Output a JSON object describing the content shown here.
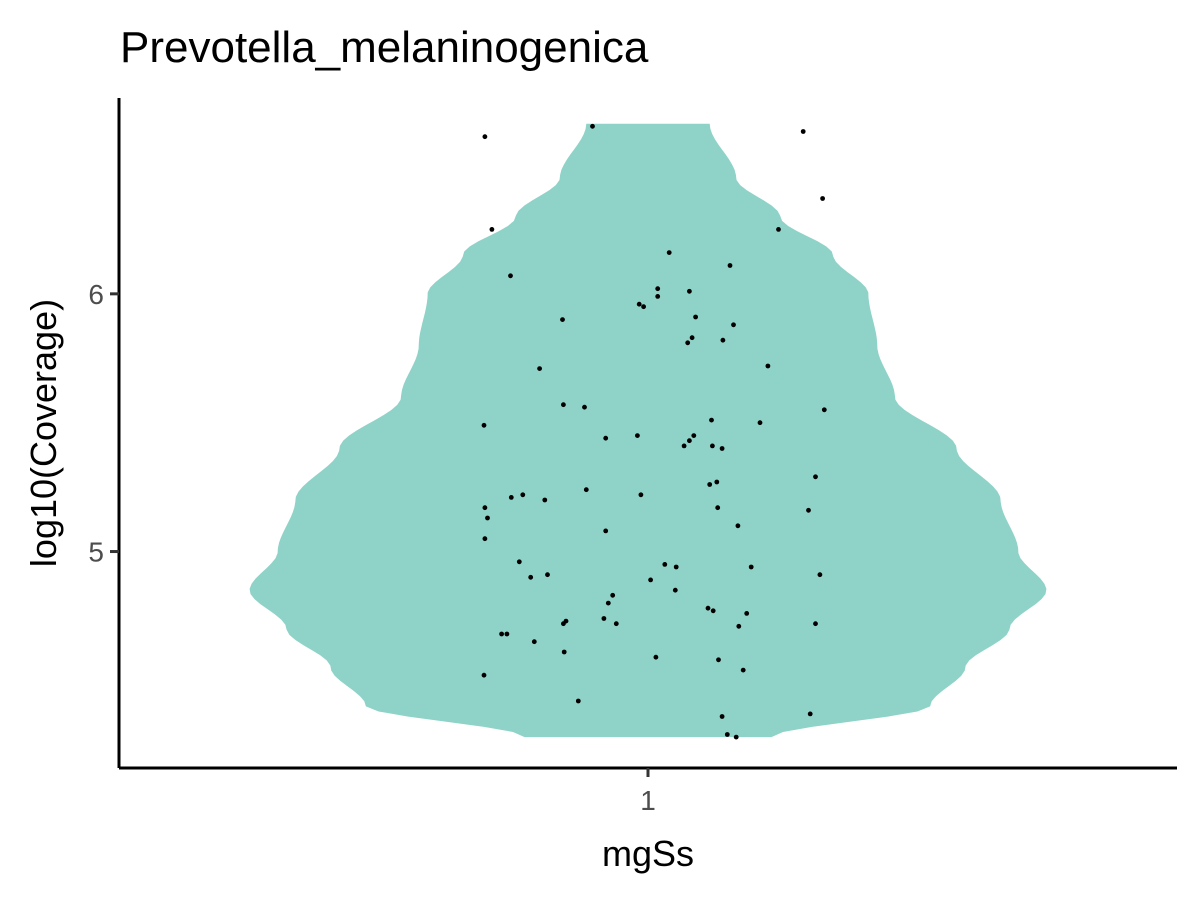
{
  "chart_data": {
    "type": "violin",
    "title": "Prevotella_melaninogenica",
    "xlabel": "mgSs",
    "ylabel": "log10(Coverage)",
    "categories": [
      "1"
    ],
    "yticks": [
      5,
      6
    ],
    "ylim": [
      4.16,
      6.76
    ],
    "xlim": [
      0.4,
      1.6
    ],
    "grid": false,
    "legend": "none",
    "colors": {
      "violin_fill": "#8fd3c8",
      "points": "#000000",
      "axis": "#000000"
    },
    "violin": {
      "ymin": 4.28,
      "ymax": 6.66,
      "profile": [
        [
          4.28,
          0.14
        ],
        [
          4.4,
          0.32
        ],
        [
          4.55,
          0.36
        ],
        [
          4.7,
          0.41
        ],
        [
          4.85,
          0.452
        ],
        [
          5.0,
          0.42
        ],
        [
          5.2,
          0.4
        ],
        [
          5.4,
          0.35
        ],
        [
          5.6,
          0.28
        ],
        [
          5.8,
          0.26
        ],
        [
          6.0,
          0.25
        ],
        [
          6.15,
          0.21
        ],
        [
          6.3,
          0.15
        ],
        [
          6.45,
          0.1
        ],
        [
          6.66,
          0.07
        ]
      ]
    },
    "points": [
      {
        "x": 0.815,
        "y": 6.61
      },
      {
        "x": 0.937,
        "y": 6.65
      },
      {
        "x": 1.176,
        "y": 6.63
      },
      {
        "x": 1.198,
        "y": 6.37
      },
      {
        "x": 0.823,
        "y": 6.25
      },
      {
        "x": 1.148,
        "y": 6.25
      },
      {
        "x": 1.024,
        "y": 6.16
      },
      {
        "x": 1.093,
        "y": 6.11
      },
      {
        "x": 0.844,
        "y": 6.07
      },
      {
        "x": 1.011,
        "y": 6.02
      },
      {
        "x": 1.047,
        "y": 6.01
      },
      {
        "x": 1.011,
        "y": 5.99
      },
      {
        "x": 0.99,
        "y": 5.96
      },
      {
        "x": 0.995,
        "y": 5.95
      },
      {
        "x": 1.054,
        "y": 5.91
      },
      {
        "x": 0.903,
        "y": 5.9
      },
      {
        "x": 1.097,
        "y": 5.88
      },
      {
        "x": 1.05,
        "y": 5.83
      },
      {
        "x": 1.085,
        "y": 5.82
      },
      {
        "x": 1.045,
        "y": 5.81
      },
      {
        "x": 1.136,
        "y": 5.72
      },
      {
        "x": 0.877,
        "y": 5.71
      },
      {
        "x": 0.904,
        "y": 5.57
      },
      {
        "x": 0.928,
        "y": 5.56
      },
      {
        "x": 1.2,
        "y": 5.55
      },
      {
        "x": 1.072,
        "y": 5.51
      },
      {
        "x": 1.127,
        "y": 5.5
      },
      {
        "x": 0.814,
        "y": 5.49
      },
      {
        "x": 1.052,
        "y": 5.45
      },
      {
        "x": 0.988,
        "y": 5.45
      },
      {
        "x": 0.952,
        "y": 5.44
      },
      {
        "x": 1.047,
        "y": 5.43
      },
      {
        "x": 1.073,
        "y": 5.41
      },
      {
        "x": 1.041,
        "y": 5.41
      },
      {
        "x": 1.084,
        "y": 5.4
      },
      {
        "x": 1.19,
        "y": 5.29
      },
      {
        "x": 1.078,
        "y": 5.27
      },
      {
        "x": 1.07,
        "y": 5.26
      },
      {
        "x": 0.93,
        "y": 5.24
      },
      {
        "x": 0.992,
        "y": 5.22
      },
      {
        "x": 0.858,
        "y": 5.22
      },
      {
        "x": 0.845,
        "y": 5.21
      },
      {
        "x": 0.883,
        "y": 5.2
      },
      {
        "x": 0.815,
        "y": 5.17
      },
      {
        "x": 1.079,
        "y": 5.17
      },
      {
        "x": 1.182,
        "y": 5.16
      },
      {
        "x": 0.818,
        "y": 5.13
      },
      {
        "x": 1.102,
        "y": 5.1
      },
      {
        "x": 0.952,
        "y": 5.08
      },
      {
        "x": 0.815,
        "y": 5.05
      },
      {
        "x": 0.854,
        "y": 4.96
      },
      {
        "x": 1.019,
        "y": 4.95
      },
      {
        "x": 1.032,
        "y": 4.94
      },
      {
        "x": 1.117,
        "y": 4.94
      },
      {
        "x": 0.886,
        "y": 4.91
      },
      {
        "x": 1.195,
        "y": 4.91
      },
      {
        "x": 0.867,
        "y": 4.9
      },
      {
        "x": 1.003,
        "y": 4.89
      },
      {
        "x": 1.031,
        "y": 4.85
      },
      {
        "x": 0.96,
        "y": 4.83
      },
      {
        "x": 0.955,
        "y": 4.8
      },
      {
        "x": 1.068,
        "y": 4.78
      },
      {
        "x": 1.074,
        "y": 4.77
      },
      {
        "x": 1.112,
        "y": 4.76
      },
      {
        "x": 0.95,
        "y": 4.74
      },
      {
        "x": 0.907,
        "y": 4.73
      },
      {
        "x": 0.904,
        "y": 4.72
      },
      {
        "x": 0.964,
        "y": 4.72
      },
      {
        "x": 1.19,
        "y": 4.72
      },
      {
        "x": 1.103,
        "y": 4.71
      },
      {
        "x": 0.834,
        "y": 4.68
      },
      {
        "x": 0.84,
        "y": 4.68
      },
      {
        "x": 0.871,
        "y": 4.65
      },
      {
        "x": 0.905,
        "y": 4.61
      },
      {
        "x": 1.009,
        "y": 4.59
      },
      {
        "x": 1.08,
        "y": 4.58
      },
      {
        "x": 1.108,
        "y": 4.54
      },
      {
        "x": 0.814,
        "y": 4.52
      },
      {
        "x": 0.921,
        "y": 4.42
      },
      {
        "x": 1.184,
        "y": 4.37
      },
      {
        "x": 1.084,
        "y": 4.36
      },
      {
        "x": 1.09,
        "y": 4.29
      },
      {
        "x": 1.1,
        "y": 4.28
      }
    ]
  }
}
